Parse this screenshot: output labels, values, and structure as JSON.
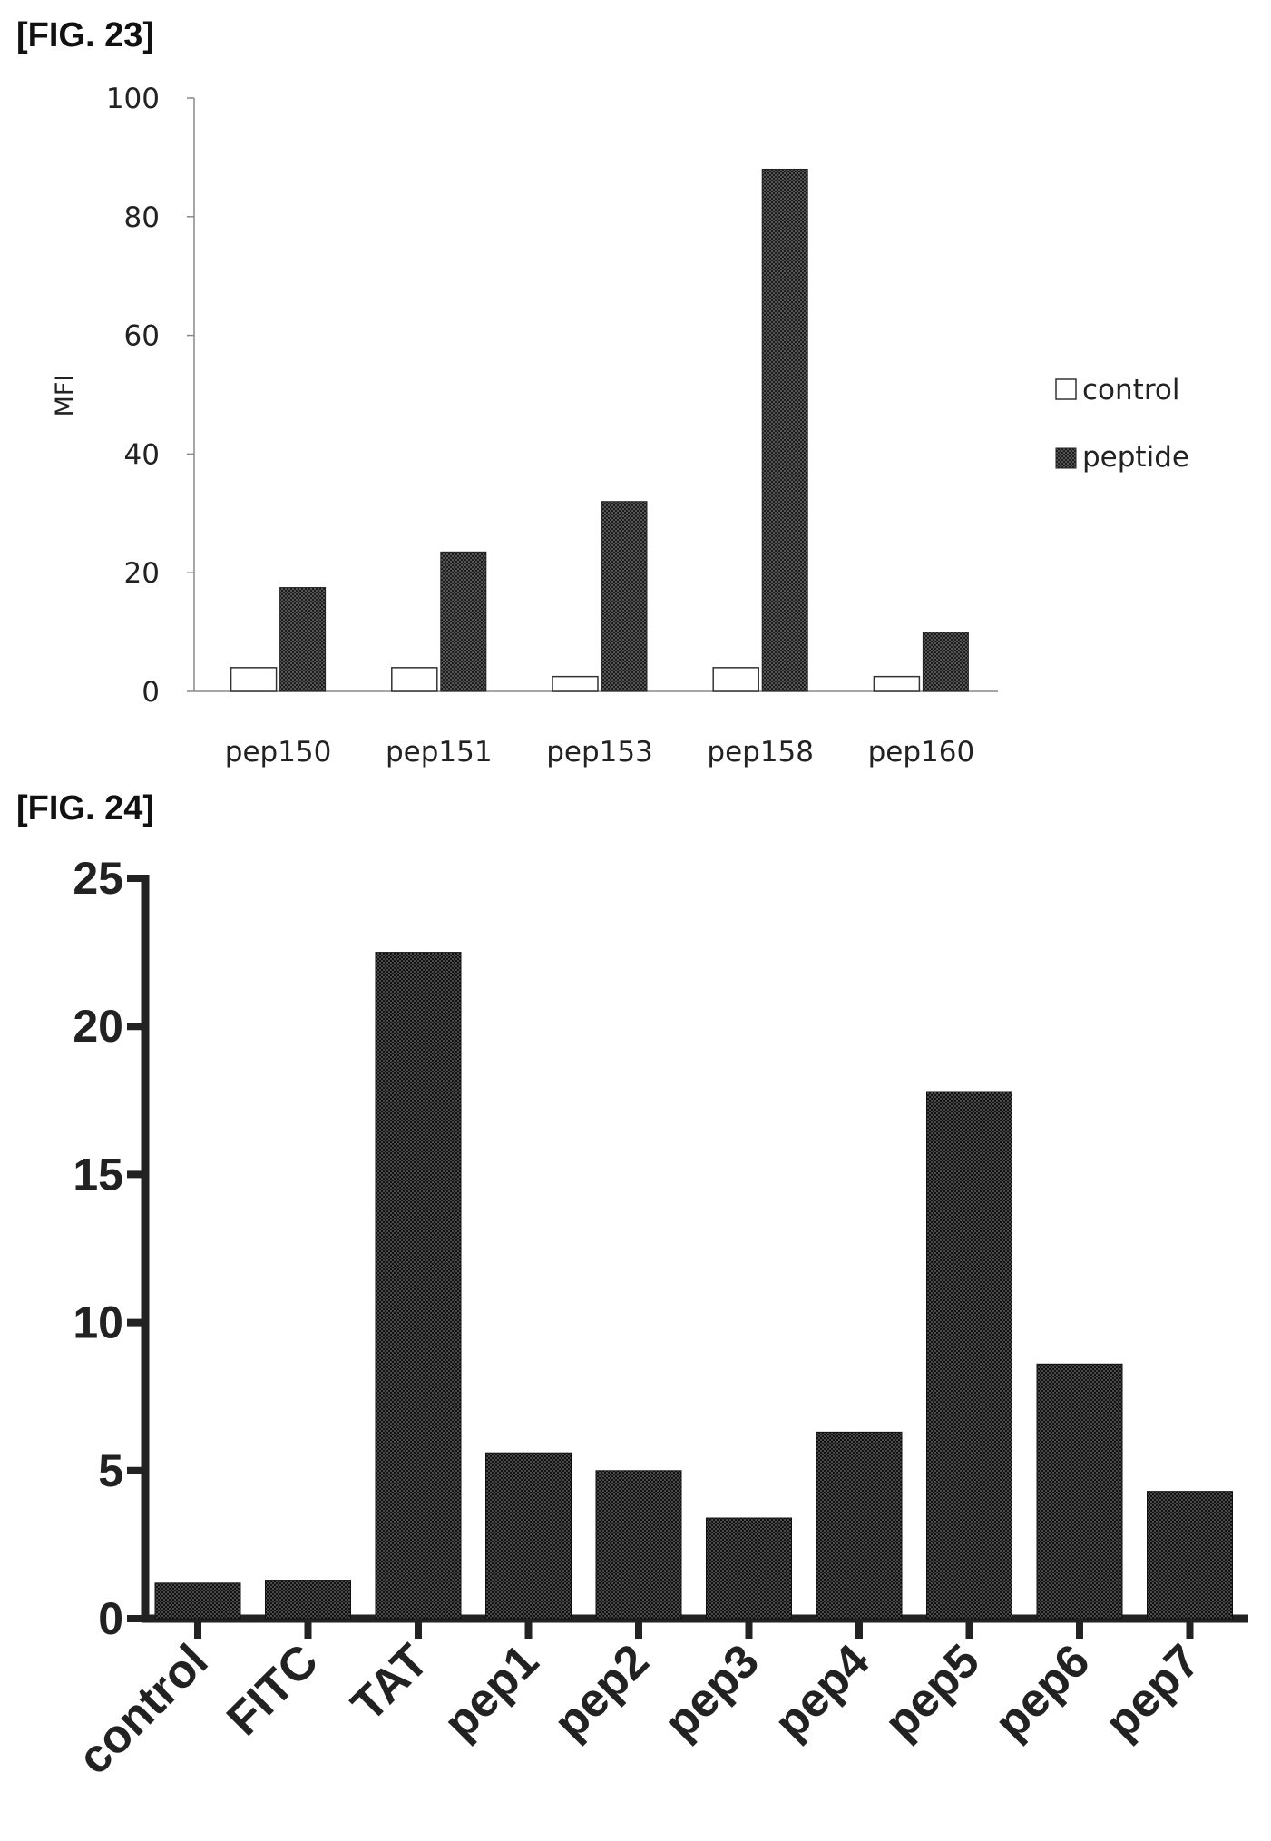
{
  "figures": [
    {
      "label": "[FIG. 23]"
    },
    {
      "label": "[FIG. 24]"
    }
  ],
  "chart_data": [
    {
      "type": "bar",
      "title": "",
      "xlabel": "",
      "ylabel": "MFI",
      "ylim": [
        0,
        100
      ],
      "yticks": [
        0,
        20,
        40,
        60,
        80,
        100
      ],
      "categories": [
        "pep150",
        "pep151",
        "pep153",
        "pep158",
        "pep160"
      ],
      "series": [
        {
          "name": "control",
          "values": [
            4,
            4,
            2.5,
            4,
            2.5
          ],
          "fill": "#ffffff"
        },
        {
          "name": "peptide",
          "values": [
            17.5,
            23.5,
            32,
            88,
            10
          ],
          "fill": "#333333"
        }
      ],
      "legend_position": "right",
      "grid": false
    },
    {
      "type": "bar",
      "title": "",
      "xlabel": "",
      "ylabel": "",
      "ylim": [
        0,
        25
      ],
      "yticks": [
        0,
        5,
        10,
        15,
        20,
        25
      ],
      "categories": [
        "control",
        "FITC",
        "TAT",
        "pep1",
        "pep2",
        "pep3",
        "pep4",
        "pep5",
        "pep6",
        "pep7"
      ],
      "values": [
        1.2,
        1.3,
        22.5,
        5.6,
        5.0,
        3.4,
        6.3,
        17.8,
        8.6,
        4.3
      ],
      "fill": "#333333",
      "grid": false
    }
  ]
}
